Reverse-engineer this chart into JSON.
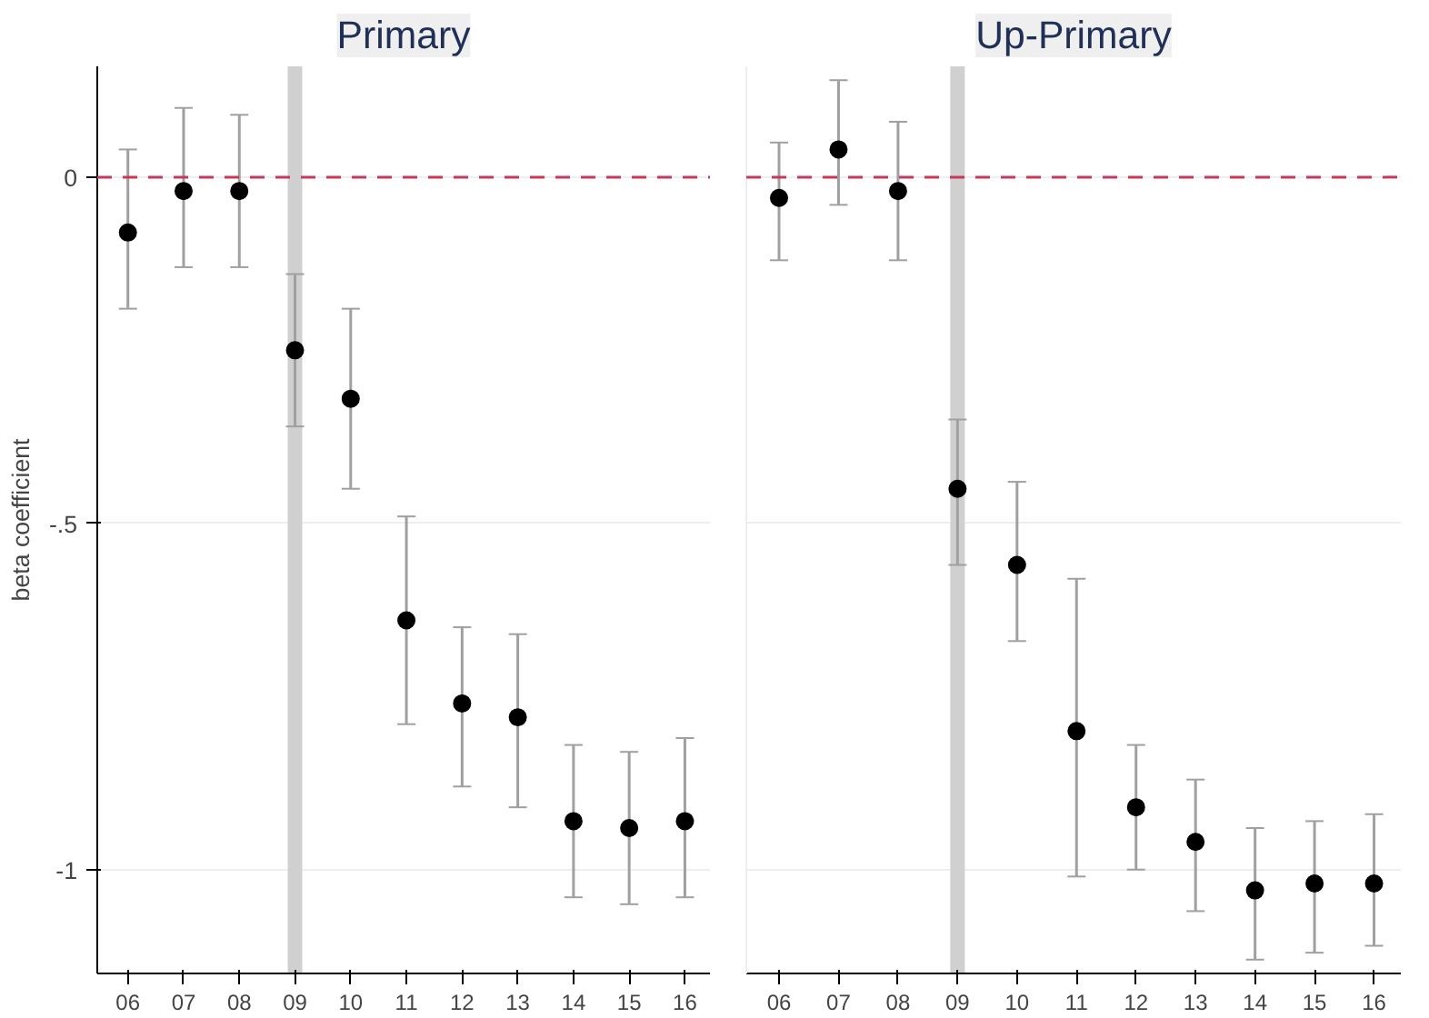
{
  "chart_data": [
    {
      "type": "scatter",
      "title": "Primary",
      "ylabel": "beta coefficient",
      "categories": [
        "06",
        "07",
        "08",
        "09",
        "10",
        "11",
        "12",
        "13",
        "14",
        "15",
        "16"
      ],
      "series": [
        {
          "color": "#000000",
          "values": [
            -0.08,
            -0.02,
            -0.02,
            -0.25,
            -0.32,
            -0.64,
            -0.76,
            -0.78,
            -0.93,
            -0.94,
            -0.93
          ],
          "errors": [
            [
              -0.19,
              0.04
            ],
            [
              -0.13,
              0.1
            ],
            [
              -0.13,
              0.09
            ],
            [
              -0.36,
              -0.14
            ],
            [
              -0.45,
              -0.19
            ],
            [
              -0.79,
              -0.49
            ],
            [
              -0.88,
              -0.65
            ],
            [
              -0.91,
              -0.66
            ],
            [
              -1.04,
              -0.82
            ],
            [
              -1.05,
              -0.83
            ],
            [
              -1.04,
              -0.81
            ]
          ]
        }
      ],
      "ylim": [
        -1.15,
        0.16
      ],
      "yticks": [
        {
          "value": 0,
          "label": "0"
        },
        {
          "value": -0.5,
          "label": "-.5"
        },
        {
          "value": -1,
          "label": "-1"
        }
      ],
      "grid": "y",
      "marker": "circle",
      "ref_lines": [
        {
          "axis": "y",
          "value": 0,
          "color": "#c8385a",
          "line_style": "dashed"
        },
        {
          "axis": "x",
          "value": "09",
          "color": "#d0d0d0"
        }
      ]
    },
    {
      "type": "scatter",
      "title": "Up-Primary",
      "categories": [
        "06",
        "07",
        "08",
        "09",
        "10",
        "11",
        "12",
        "13",
        "14",
        "15",
        "16"
      ],
      "series": [
        {
          "color": "#000000",
          "values": [
            -0.03,
            0.04,
            -0.02,
            -0.45,
            -0.56,
            -0.8,
            -0.91,
            -0.96,
            -1.03,
            -1.02,
            -1.02
          ],
          "errors": [
            [
              -0.12,
              0.05
            ],
            [
              -0.04,
              0.14
            ],
            [
              -0.12,
              0.08
            ],
            [
              -0.56,
              -0.35
            ],
            [
              -0.67,
              -0.44
            ],
            [
              -1.01,
              -0.58
            ],
            [
              -1.0,
              -0.82
            ],
            [
              -1.06,
              -0.87
            ],
            [
              -1.13,
              -0.94
            ],
            [
              -1.12,
              -0.93
            ],
            [
              -1.11,
              -0.92
            ]
          ]
        }
      ],
      "ylim": [
        -1.15,
        0.16
      ],
      "yticks": [
        {
          "value": 0,
          "label": null
        },
        {
          "value": -0.5,
          "label": null
        },
        {
          "value": -1,
          "label": null
        }
      ],
      "tick_labels": "x",
      "grid": "y",
      "marker": "circle",
      "ref_lines": [
        {
          "axis": "y",
          "value": 0,
          "color": "#c8385a",
          "line_style": "dashed"
        },
        {
          "axis": "x",
          "value": "09",
          "color": "#d0d0d0"
        }
      ]
    }
  ]
}
